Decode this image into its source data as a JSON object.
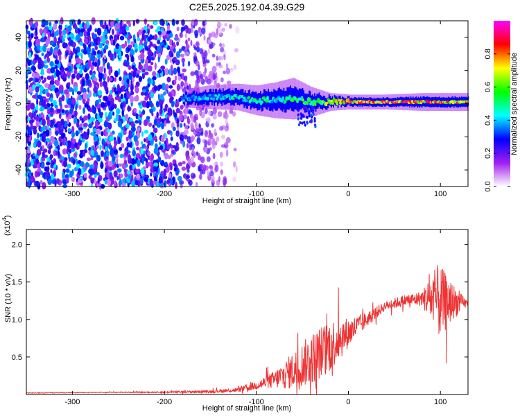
{
  "title": "C2E5.2025.192.04.39.G29",
  "chart_data": [
    {
      "type": "heatmap",
      "title": "",
      "xlabel": "Height of straight line (km)",
      "ylabel": "Frequency (Hz)",
      "xlim": [
        -350,
        130
      ],
      "ylim": [
        -50,
        50
      ],
      "xticks": [
        -300,
        -200,
        -100,
        0,
        100
      ],
      "yticks": [
        -40,
        -20,
        0,
        20,
        40
      ],
      "colorbar": {
        "label": "Normalized spectral amplitude",
        "range": [
          0,
          1
        ],
        "ticks": [
          "0.0",
          "0.2",
          "0.4",
          "0.6",
          "0.8"
        ],
        "colors": [
          "#ffffff",
          "#a020f0",
          "#0000ff",
          "#00ffff",
          "#00ff00",
          "#ffff00",
          "#ff0000",
          "#ff00ff"
        ]
      },
      "noise_region_x": [
        -350,
        -130
      ],
      "signal_band": [
        {
          "x": -180,
          "freq": 3,
          "width": 6,
          "amp": 0.35
        },
        {
          "x": -150,
          "freq": 4,
          "width": 8,
          "amp": 0.4
        },
        {
          "x": -120,
          "freq": 4,
          "width": 9,
          "amp": 0.45
        },
        {
          "x": -100,
          "freq": 2,
          "width": 10,
          "amp": 0.5
        },
        {
          "x": -80,
          "freq": 2,
          "width": 12,
          "amp": 0.45
        },
        {
          "x": -60,
          "freq": 3,
          "width": 14,
          "amp": 0.5
        },
        {
          "x": -40,
          "freq": 1,
          "width": 10,
          "amp": 0.55
        },
        {
          "x": -20,
          "freq": 1,
          "width": 6,
          "amp": 0.7
        },
        {
          "x": 0,
          "freq": 1,
          "width": 5,
          "amp": 0.75
        },
        {
          "x": 40,
          "freq": 1,
          "width": 5,
          "amp": 0.8
        },
        {
          "x": 80,
          "freq": 1,
          "width": 6,
          "amp": 0.8
        },
        {
          "x": 125,
          "freq": 1,
          "width": 6,
          "amp": 0.75
        }
      ]
    },
    {
      "type": "line",
      "title": "",
      "xlabel": "Height of straight line (km)",
      "ylabel": "SNR (10 * v/v)",
      "yscale_note": "(x10",
      "yscale_exp": "4",
      "xlim": [
        -350,
        130
      ],
      "ylim": [
        0,
        2.2
      ],
      "xticks": [
        -300,
        -200,
        -100,
        0,
        100
      ],
      "yticks": [
        0.5,
        1.0,
        1.5,
        2.0
      ],
      "series": [
        {
          "color": "#ee3333",
          "x": [
            -350,
            -250,
            -200,
            -150,
            -120,
            -100,
            -80,
            -60,
            -40,
            -20,
            -10,
            0,
            20,
            40,
            60,
            80,
            95,
            100,
            110,
            120,
            130
          ],
          "y": [
            0.02,
            0.03,
            0.03,
            0.04,
            0.06,
            0.12,
            0.2,
            0.32,
            0.48,
            0.65,
            0.75,
            0.82,
            1.0,
            1.18,
            1.25,
            1.28,
            1.28,
            1.22,
            1.25,
            1.22,
            1.22
          ],
          "spread": [
            0.005,
            0.005,
            0.01,
            0.02,
            0.03,
            0.06,
            0.12,
            0.25,
            0.35,
            0.35,
            0.3,
            0.2,
            0.1,
            0.06,
            0.08,
            0.1,
            0.45,
            0.5,
            0.3,
            0.15,
            0.03
          ]
        }
      ]
    }
  ]
}
